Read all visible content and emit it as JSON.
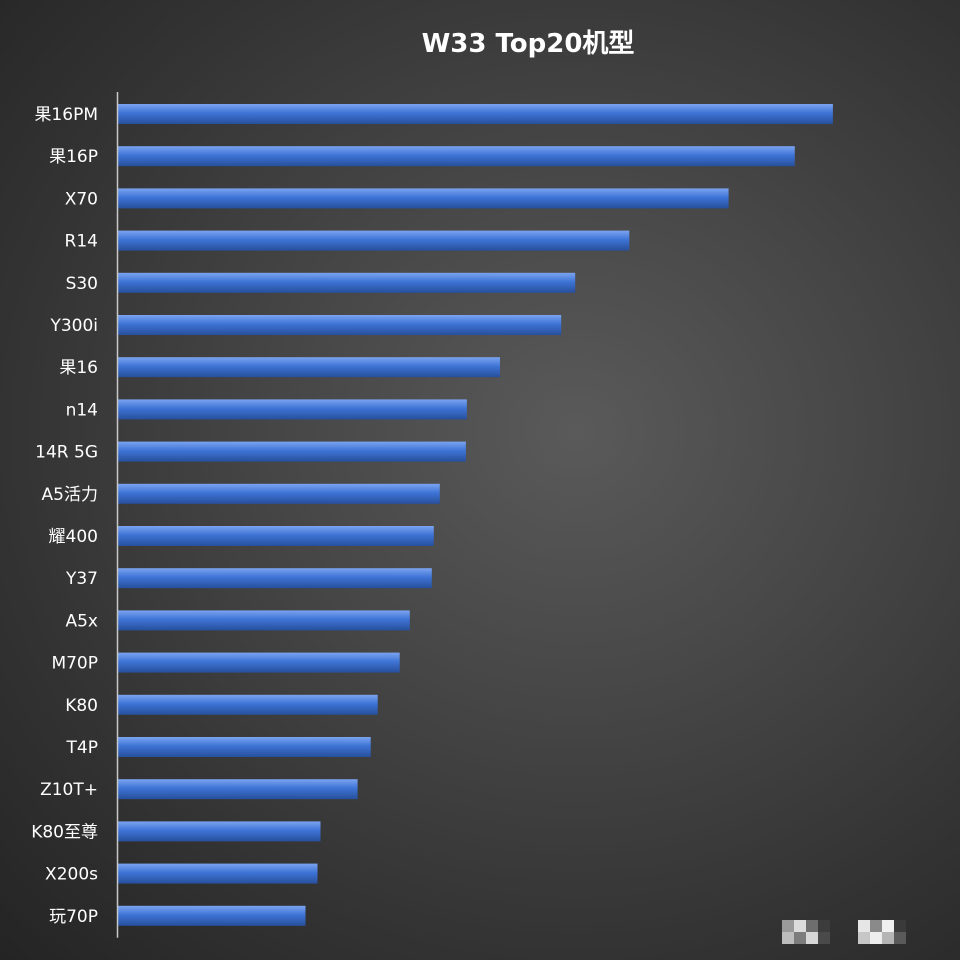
{
  "chart_data": {
    "type": "bar",
    "orientation": "horizontal",
    "title": "W33 Top20机型",
    "xlabel": "",
    "ylabel": "",
    "categories": [
      "果16PM",
      "果16P",
      "X70",
      "R14",
      "S30",
      "Y300i",
      "果16",
      "n14",
      "14R 5G",
      "A5活力",
      "耀400",
      "Y37",
      "A5x",
      "M70P",
      "K80",
      "T4P",
      "Z10T+",
      "K80至尊",
      "X200s",
      "玩70P"
    ],
    "values": [
      713,
      675,
      609,
      510,
      456,
      442,
      381,
      348,
      347,
      321,
      315,
      313,
      291,
      281,
      259,
      252,
      239,
      202,
      199,
      187
    ],
    "xlim": [
      0,
      760
    ],
    "grid": false,
    "legend": "none",
    "colors": {
      "bar": "#3e74d6",
      "bar_highlight": "#7ba4f0",
      "bar_shadow": "#274f9c",
      "axis": "#c8c8c8",
      "text": "#ffffff"
    }
  }
}
